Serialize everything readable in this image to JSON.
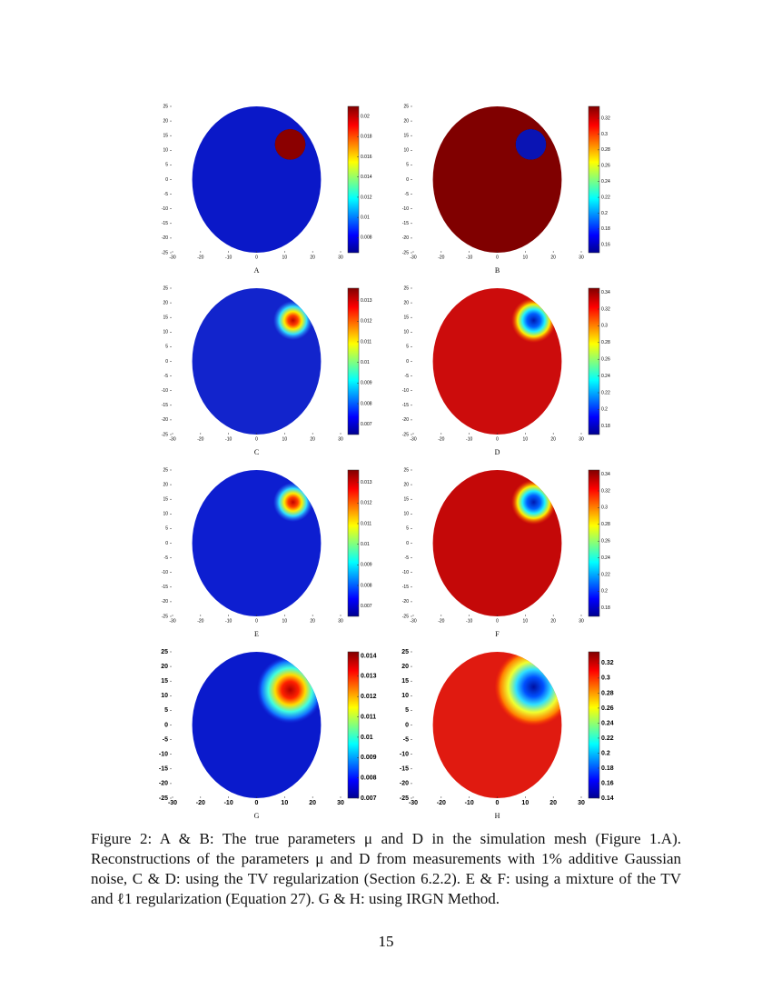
{
  "figure": {
    "panels": [
      {
        "label": "A",
        "xlim": [
          -30,
          30
        ],
        "ylim": [
          -25,
          25
        ],
        "xticks": [
          -30,
          -20,
          -10,
          0,
          10,
          20,
          30
        ],
        "yticks": [
          25,
          20,
          15,
          10,
          5,
          0,
          -5,
          -10,
          -15,
          -20,
          -25
        ],
        "clim": [
          0.0065,
          0.021
        ],
        "cticks": [
          0.008,
          0.01,
          0.012,
          0.014,
          0.016,
          0.018,
          0.02
        ]
      },
      {
        "label": "B",
        "xlim": [
          -30,
          30
        ],
        "ylim": [
          -25,
          25
        ],
        "xticks": [
          -30,
          -20,
          -10,
          0,
          10,
          20,
          30
        ],
        "yticks": [
          25,
          20,
          15,
          10,
          5,
          0,
          -5,
          -10,
          -15,
          -20,
          -25
        ],
        "clim": [
          0.15,
          0.335
        ],
        "cticks": [
          0.16,
          0.18,
          0.2,
          0.22,
          0.24,
          0.26,
          0.28,
          0.3,
          0.32
        ]
      },
      {
        "label": "C",
        "xlim": [
          -30,
          30
        ],
        "ylim": [
          -25,
          25
        ],
        "xticks": [
          -30,
          -20,
          -10,
          0,
          10,
          20,
          30
        ],
        "yticks": [
          25,
          20,
          15,
          10,
          5,
          0,
          -5,
          -10,
          -15,
          -20,
          -25
        ],
        "clim": [
          0.0065,
          0.0136
        ],
        "cticks": [
          0.007,
          0.008,
          0.009,
          0.01,
          0.011,
          0.012,
          0.013
        ]
      },
      {
        "label": "D",
        "xlim": [
          -30,
          30
        ],
        "ylim": [
          -25,
          25
        ],
        "xticks": [
          -30,
          -20,
          -10,
          0,
          10,
          20,
          30
        ],
        "yticks": [
          25,
          20,
          15,
          10,
          5,
          0,
          -5,
          -10,
          -15,
          -20,
          -25
        ],
        "clim": [
          0.17,
          0.345
        ],
        "cticks": [
          0.18,
          0.2,
          0.22,
          0.24,
          0.26,
          0.28,
          0.3,
          0.32,
          0.34
        ]
      },
      {
        "label": "E",
        "xlim": [
          -30,
          30
        ],
        "ylim": [
          -25,
          25
        ],
        "xticks": [
          -30,
          -20,
          -10,
          0,
          10,
          20,
          30
        ],
        "yticks": [
          25,
          20,
          15,
          10,
          5,
          0,
          -5,
          -10,
          -15,
          -20,
          -25
        ],
        "clim": [
          0.0065,
          0.0136
        ],
        "cticks": [
          0.007,
          0.008,
          0.009,
          0.01,
          0.011,
          0.012,
          0.013
        ]
      },
      {
        "label": "F",
        "xlim": [
          -30,
          30
        ],
        "ylim": [
          -25,
          25
        ],
        "xticks": [
          -30,
          -20,
          -10,
          0,
          10,
          20,
          30
        ],
        "yticks": [
          25,
          20,
          15,
          10,
          5,
          0,
          -5,
          -10,
          -15,
          -20,
          -25
        ],
        "clim": [
          0.17,
          0.345
        ],
        "cticks": [
          0.18,
          0.2,
          0.22,
          0.24,
          0.26,
          0.28,
          0.3,
          0.32,
          0.34
        ]
      },
      {
        "label": "G",
        "xlim": [
          -30,
          30
        ],
        "ylim": [
          -25,
          25
        ],
        "xticks": [
          -30,
          -20,
          -10,
          0,
          10,
          20,
          30
        ],
        "yticks": [
          25,
          20,
          15,
          10,
          5,
          0,
          -5,
          -10,
          -15,
          -20,
          -25
        ],
        "clim": [
          0.007,
          0.0142
        ],
        "cticks": [
          0.007,
          0.008,
          0.009,
          0.01,
          0.011,
          0.012,
          0.013,
          0.014
        ]
      },
      {
        "label": "H",
        "xlim": [
          -30,
          30
        ],
        "ylim": [
          -25,
          25
        ],
        "xticks": [
          -30,
          -20,
          -10,
          0,
          10,
          20,
          30
        ],
        "yticks": [
          25,
          20,
          15,
          10,
          5,
          0,
          -5,
          -10,
          -15,
          -20,
          -25
        ],
        "clim": [
          0.14,
          0.335
        ],
        "cticks": [
          0.14,
          0.16,
          0.18,
          0.2,
          0.22,
          0.24,
          0.26,
          0.28,
          0.3,
          0.32
        ]
      }
    ]
  },
  "caption": "Figure 2: A & B: The true parameters μ and D in the simulation mesh (Figure 1.A). Reconstructions of the parameters μ and D from measurements with 1% additive Gaussian noise, C & D: using the TV regularization (Section 6.2.2). E & F: using a mixture of the TV and ℓ1 regularization (Equation 27). G & H: using IRGN Method.",
  "page_number": "15"
}
